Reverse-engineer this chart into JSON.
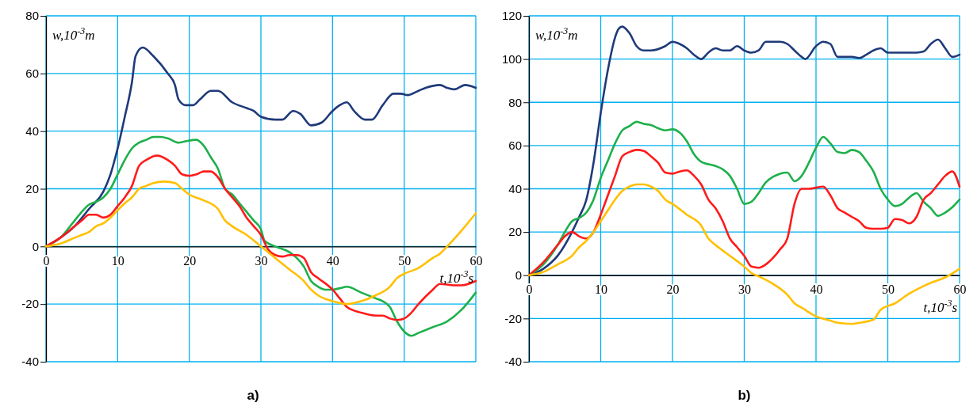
{
  "chart_data": [
    {
      "type": "line",
      "title": "a)",
      "xlabel": "t,10$^{-3}$s",
      "ylabel": "w,10$^{-3}$m",
      "xlim": [
        0,
        60
      ],
      "xticks": [
        0,
        10,
        20,
        30,
        40,
        50,
        60
      ],
      "ylim": [
        -40,
        80
      ],
      "yticks": [
        -40,
        -20,
        0,
        20,
        40,
        60,
        80
      ],
      "grid": true,
      "line_style": "solid",
      "series": [
        {
          "color": "#1f3a7a",
          "x": [
            0,
            2,
            4,
            6,
            8,
            9,
            10,
            11,
            12,
            12.5,
            13.5,
            15,
            17,
            18,
            18.5,
            19.5,
            20.5,
            21.5,
            23,
            24,
            26,
            28,
            29,
            30,
            32,
            33,
            34.5,
            35.5,
            37,
            38.5,
            40,
            41,
            42,
            43,
            44.5,
            45.5,
            47,
            48.5,
            49.5,
            50.5,
            52,
            53,
            55,
            56,
            57,
            58.5,
            59.5,
            60
          ],
          "values": [
            0,
            3,
            7,
            13,
            19,
            25,
            34,
            45,
            57,
            66,
            69,
            66,
            60,
            56,
            51,
            49,
            49,
            51,
            54,
            54,
            50,
            48,
            47,
            45,
            44,
            44,
            47,
            46,
            42,
            43,
            47,
            49,
            50,
            47,
            44,
            44,
            49,
            53,
            53,
            52.5,
            54,
            55,
            56,
            55,
            54.5,
            56,
            55.5,
            55
          ]
        },
        {
          "color": "#1db04b",
          "x": [
            0,
            2,
            4,
            5,
            6,
            7,
            8,
            9,
            10,
            11,
            12,
            13,
            14,
            15,
            16,
            17,
            18.5,
            19.5,
            21,
            22,
            23,
            24,
            25,
            26,
            27,
            28,
            29,
            30,
            30.5,
            32,
            34,
            35,
            36,
            37,
            38,
            39,
            40,
            41,
            42,
            44,
            46,
            47,
            48,
            49,
            50,
            51,
            52,
            54,
            56,
            58,
            60
          ],
          "values": [
            0,
            3,
            9,
            12,
            14.5,
            15.5,
            17,
            20,
            25,
            30,
            34,
            36,
            37,
            38,
            38,
            37.5,
            36,
            36.5,
            37,
            35,
            31,
            27,
            20,
            18,
            15,
            12,
            9,
            6,
            2,
            0,
            -2,
            -4,
            -7,
            -12,
            -14,
            -15,
            -15,
            -14.5,
            -14,
            -16,
            -18,
            -19,
            -21,
            -26,
            -29.5,
            -31,
            -30,
            -28,
            -26,
            -22,
            -16
          ]
        },
        {
          "color": "#ff1a1a",
          "x": [
            0,
            2,
            4,
            5,
            6,
            7,
            8,
            9,
            10,
            11,
            12,
            13,
            14,
            15.5,
            17,
            18,
            19,
            20,
            21,
            22,
            23,
            24,
            25,
            26,
            27,
            28,
            29,
            30,
            31,
            32,
            33,
            34,
            35,
            36,
            37,
            38,
            40,
            41,
            42,
            44,
            46,
            47,
            48,
            49,
            50,
            51,
            52,
            54,
            55,
            57,
            58,
            60
          ],
          "values": [
            0,
            3,
            7,
            9,
            11,
            11,
            10,
            11,
            14,
            17,
            21,
            28,
            30,
            31.5,
            30,
            28,
            25,
            24.5,
            25,
            26,
            26,
            24,
            20,
            17,
            14,
            10,
            7,
            4,
            -1,
            -3,
            -3.5,
            -3,
            -3,
            -4,
            -9,
            -11,
            -15,
            -18,
            -21,
            -23,
            -24,
            -24,
            -25,
            -25.5,
            -25,
            -23,
            -20,
            -15,
            -13,
            -13.5,
            -13.5,
            -12
          ]
        },
        {
          "color": "#ffc000",
          "x": [
            0,
            2,
            4,
            5,
            6,
            7,
            8,
            9,
            10,
            11,
            12,
            13,
            14,
            15,
            16.5,
            18,
            19,
            20,
            22,
            24,
            25,
            26,
            28,
            30,
            32,
            34,
            36,
            37,
            38,
            40,
            42,
            44,
            46,
            48,
            49,
            50,
            52,
            54,
            55,
            56,
            58,
            60
          ],
          "values": [
            0,
            1,
            3,
            4,
            5,
            7,
            8,
            10,
            12.5,
            15,
            17,
            20,
            21,
            22,
            22.5,
            22,
            20,
            18,
            16,
            13,
            9,
            7,
            4,
            0,
            -4,
            -8,
            -12,
            -15,
            -17,
            -19,
            -20,
            -19,
            -17,
            -14,
            -11,
            -9.5,
            -7.5,
            -4,
            -2.5,
            0,
            5.5,
            11.5
          ]
        }
      ]
    },
    {
      "type": "line",
      "title": "b)",
      "xlabel": "t,10$^{-3}$s",
      "ylabel": "w,10$^{-3}$m",
      "xlim": [
        0,
        60
      ],
      "xticks": [
        0,
        10,
        20,
        30,
        40,
        50,
        60
      ],
      "ylim": [
        -40,
        120
      ],
      "yticks": [
        -40,
        -20,
        0,
        20,
        40,
        60,
        80,
        100,
        120
      ],
      "grid": true,
      "line_style": "solid",
      "series": [
        {
          "color": "#1f3a7a",
          "x": [
            0,
            2,
            4,
            6,
            7,
            8,
            9,
            10,
            11,
            12,
            12.5,
            13,
            14,
            15,
            16,
            17,
            19,
            20,
            21,
            22,
            23,
            24,
            25,
            26,
            27,
            28,
            29,
            30,
            31,
            32,
            33,
            34,
            35,
            36,
            37,
            38,
            38.5,
            40,
            41,
            42,
            43,
            45,
            46,
            47,
            48,
            49,
            50,
            52,
            54,
            55,
            56,
            57,
            58,
            59,
            60
          ],
          "values": [
            0,
            3,
            9,
            20,
            27,
            35,
            52,
            75,
            95,
            110,
            114,
            115,
            112,
            106,
            104,
            104,
            106,
            108,
            107,
            105,
            102,
            100,
            103,
            105,
            104,
            104,
            106,
            104,
            103,
            104,
            108,
            108,
            108,
            107,
            104,
            101,
            100,
            106,
            108,
            107,
            101,
            101,
            100.5,
            102,
            104,
            105,
            103,
            103,
            103,
            103.5,
            107,
            109,
            105,
            101,
            102
          ]
        },
        {
          "color": "#1db04b",
          "x": [
            0,
            2,
            4,
            5,
            6,
            7,
            8,
            9,
            10,
            11,
            12,
            13,
            14,
            15,
            16,
            17,
            18,
            19,
            20,
            21,
            22,
            23,
            24,
            26,
            27,
            28,
            29,
            30,
            31,
            32,
            33,
            34,
            35,
            36,
            37,
            38,
            39,
            40,
            41,
            42,
            43,
            44,
            45,
            46,
            47,
            48,
            49,
            50,
            51,
            52,
            53,
            54,
            55,
            56,
            57,
            58,
            59,
            60
          ],
          "values": [
            0,
            5,
            14,
            20,
            25,
            26.5,
            29,
            35,
            45,
            53,
            61,
            67,
            69,
            71,
            70,
            69.5,
            68,
            67,
            67.5,
            66,
            62,
            56,
            52.5,
            50.5,
            49,
            46,
            40,
            33,
            34,
            38,
            43,
            45.5,
            47,
            47.5,
            43.5,
            46,
            52,
            59,
            64,
            61,
            57,
            56.5,
            58,
            57,
            53,
            48,
            40,
            35,
            32,
            33,
            36,
            38,
            34,
            31,
            27.5,
            29,
            31.5,
            35
          ]
        },
        {
          "color": "#ff1a1a",
          "x": [
            0,
            2,
            4,
            5,
            6,
            7,
            8,
            9,
            10,
            11,
            12,
            13,
            14,
            15,
            16,
            17,
            18,
            19,
            20,
            21,
            22,
            23,
            24,
            25,
            26,
            27,
            28,
            29,
            30,
            31,
            32,
            33,
            34,
            35,
            36,
            37,
            38,
            39,
            40,
            41,
            42,
            43,
            44,
            45,
            46,
            47,
            48,
            49,
            50,
            51,
            52,
            53,
            54,
            55,
            56,
            57,
            58,
            59,
            60
          ],
          "values": [
            0,
            6,
            14,
            18,
            20,
            18,
            17,
            20,
            28,
            37,
            46,
            55,
            57,
            58,
            57.5,
            55,
            52,
            47.5,
            47,
            48,
            48.5,
            46,
            42,
            35,
            31,
            25,
            17,
            13,
            9,
            4,
            3.5,
            5,
            8,
            12,
            17,
            33,
            40,
            40,
            40.5,
            41,
            37,
            31,
            29,
            27,
            25,
            22,
            21.5,
            21.5,
            22,
            26,
            25.5,
            24,
            27,
            35,
            38,
            42,
            46,
            48,
            41
          ]
        },
        {
          "color": "#ffc000",
          "x": [
            0,
            2,
            4,
            6,
            7,
            8,
            9,
            10,
            11,
            12,
            13,
            14,
            15,
            16,
            17,
            18,
            19,
            20,
            22,
            24,
            25,
            26,
            28,
            30,
            31,
            32,
            34,
            36,
            37,
            38,
            40,
            42,
            43,
            45,
            46,
            48,
            49,
            51,
            53,
            55,
            56,
            58,
            60
          ],
          "values": [
            0,
            1.5,
            5,
            9,
            13,
            16,
            20,
            25,
            30,
            35,
            39,
            41,
            42,
            42,
            41,
            39,
            35,
            33,
            28,
            23,
            17,
            14,
            9,
            4,
            1,
            -0.5,
            -4,
            -9,
            -13,
            -15,
            -19,
            -21,
            -22,
            -22.5,
            -22,
            -20.5,
            -16,
            -13,
            -8.5,
            -5,
            -3.5,
            -1,
            3
          ]
        }
      ]
    }
  ]
}
